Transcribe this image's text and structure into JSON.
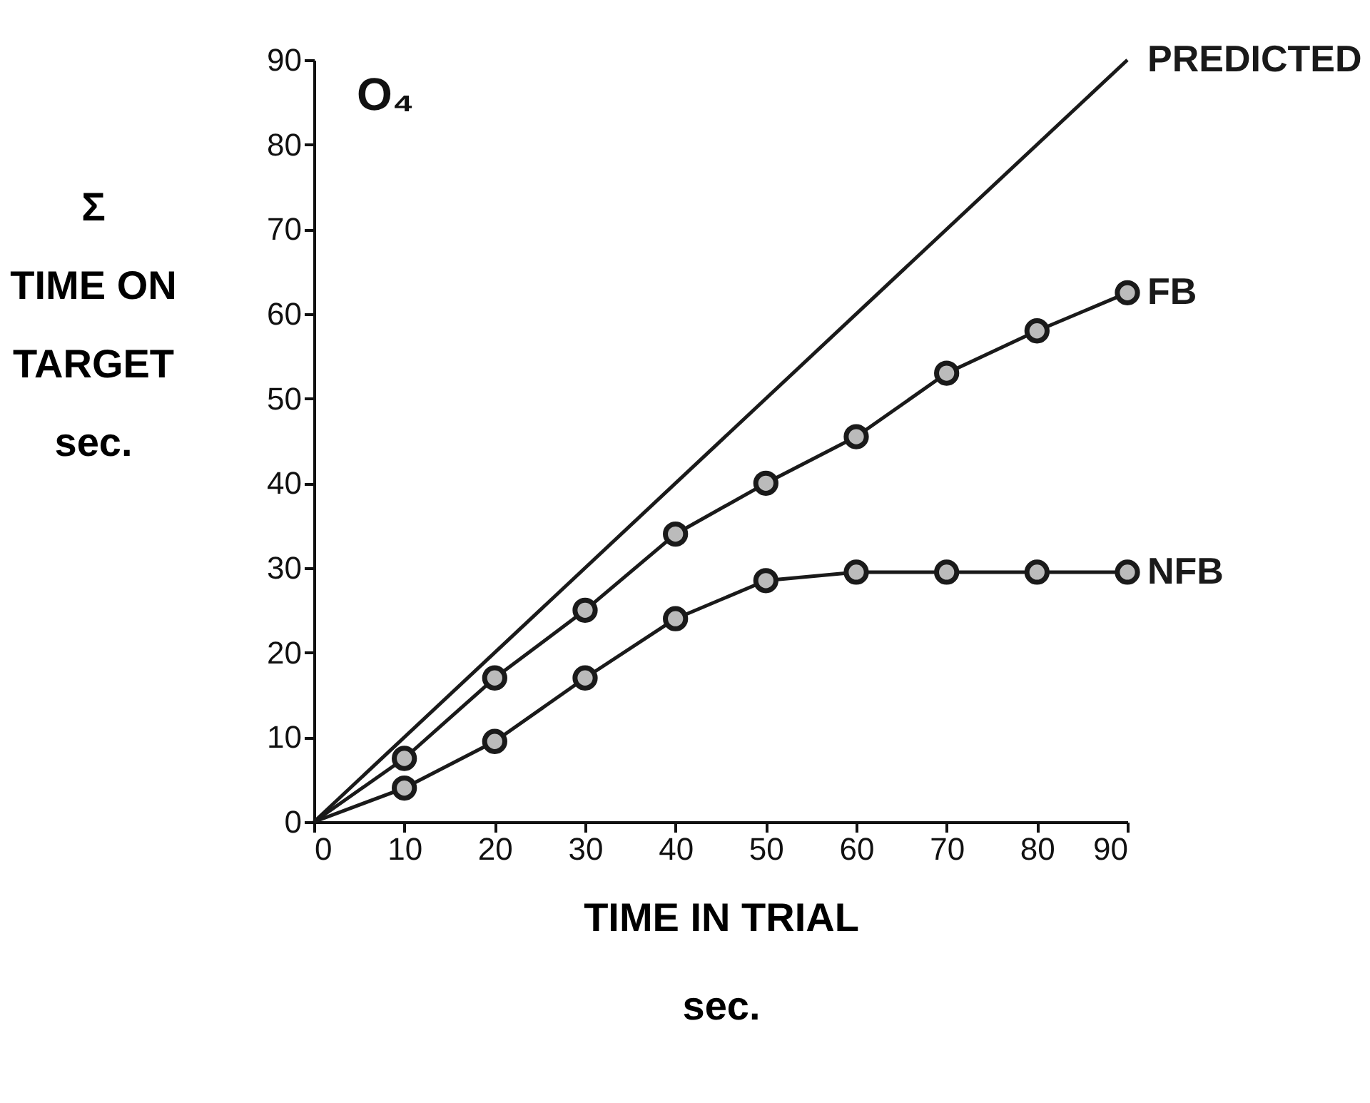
{
  "chart_data": {
    "type": "line",
    "xlabel": "TIME IN TRIAL\nsec.",
    "ylabel": "Σ\nTIME ON\nTARGET\nsec.",
    "annotations": [
      "O₄"
    ],
    "x": [
      0,
      10,
      20,
      30,
      40,
      50,
      60,
      70,
      80,
      90
    ],
    "series": [
      {
        "name": "PREDICTED",
        "color": "#1a1a1a",
        "marker": "none",
        "x": [
          0,
          90
        ],
        "values": [
          0,
          90
        ]
      },
      {
        "name": "FB",
        "color": "#1a1a1a",
        "values": [
          0,
          7.5,
          17,
          25,
          34,
          40,
          45.5,
          53,
          58,
          62.5
        ]
      },
      {
        "name": "NFB",
        "color": "#1a1a1a",
        "values": [
          0,
          4,
          9.5,
          17,
          24,
          28.5,
          29.5,
          29.5,
          29.5,
          29.5
        ]
      }
    ],
    "xlim": [
      0,
      90
    ],
    "ylim": [
      0,
      90
    ],
    "xticks": [
      0,
      10,
      20,
      30,
      40,
      50,
      60,
      70,
      80,
      90
    ],
    "yticks": [
      0,
      10,
      20,
      30,
      40,
      50,
      60,
      70,
      80,
      90
    ],
    "grid": false,
    "legend": false,
    "marker": "circle",
    "line_style": "solid"
  }
}
